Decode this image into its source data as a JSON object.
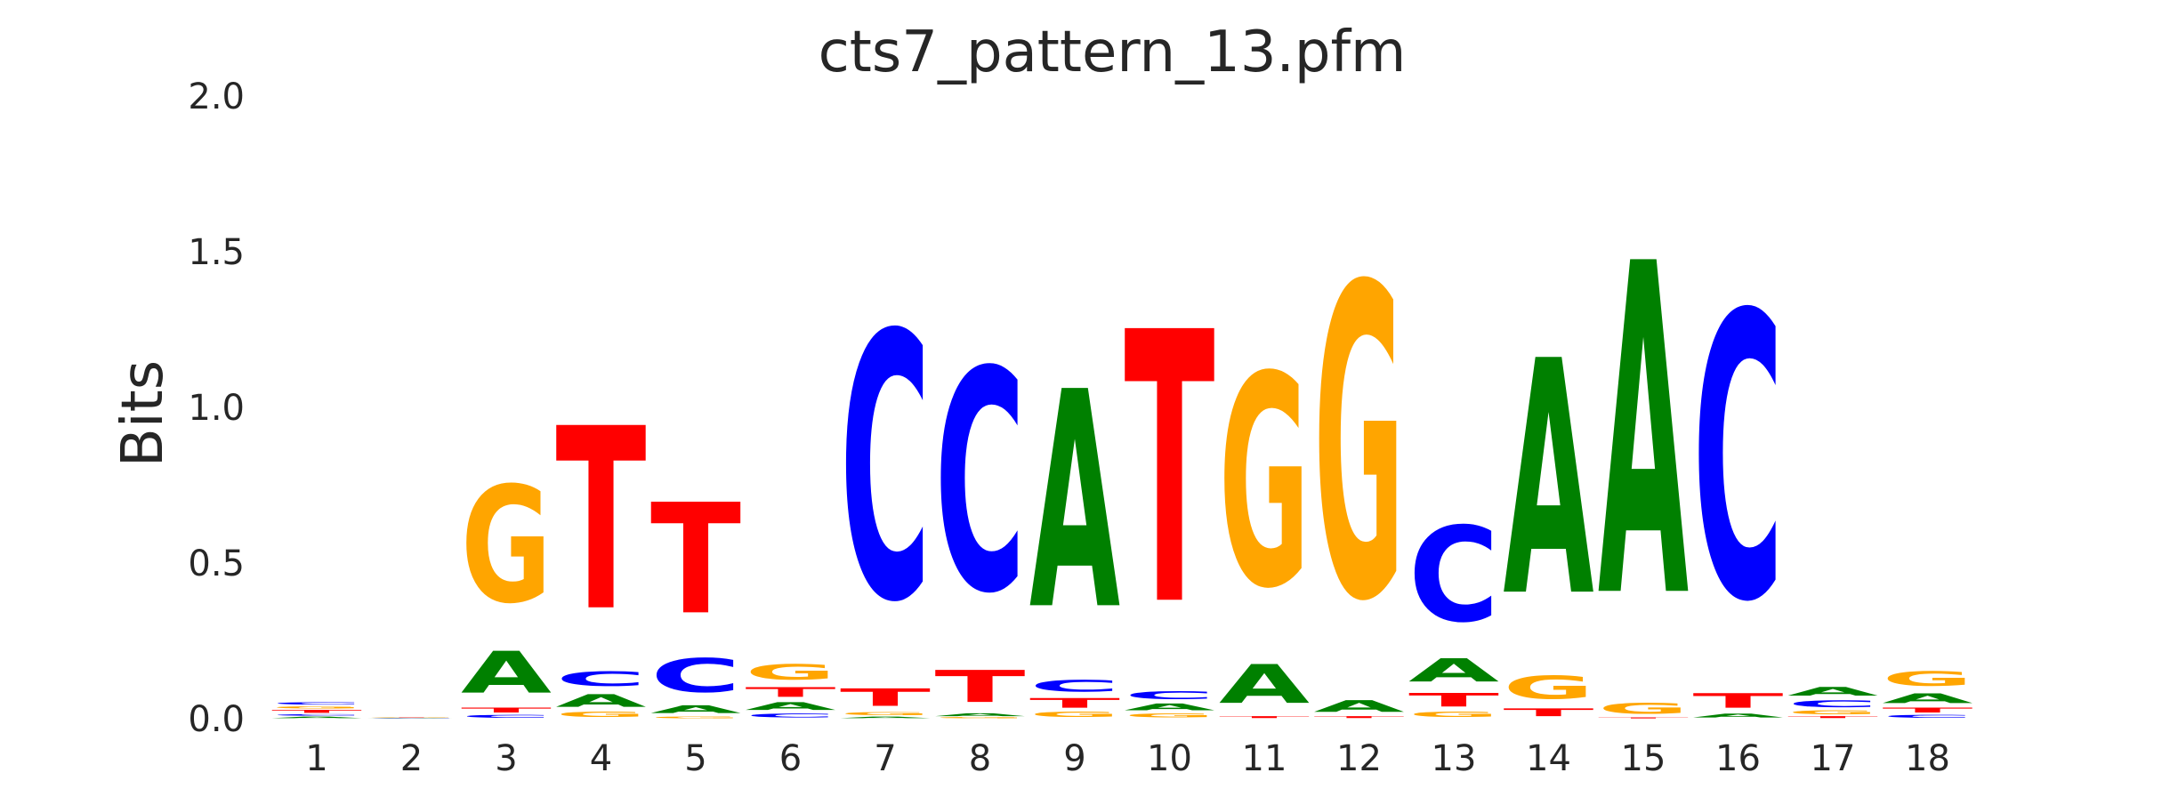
{
  "chart_data": {
    "type": "sequence-logo",
    "title": "cts7_pattern_13.pfm",
    "ylabel": "Bits",
    "ylim": [
      0,
      2.0
    ],
    "yticks": [
      "0.0",
      "0.5",
      "1.0",
      "1.5",
      "2.0"
    ],
    "ytick_values": [
      0,
      0.5,
      1.0,
      1.5,
      2.0
    ],
    "colors": {
      "A": "#008000",
      "C": "#0000ff",
      "G": "#ffa500",
      "T": "#ff0000"
    },
    "positions": [
      {
        "label": "1",
        "stack": [
          [
            "A",
            0.008
          ],
          [
            "C",
            0.008
          ],
          [
            "T",
            0.015
          ],
          [
            "G",
            0.012
          ],
          [
            "C",
            0.012
          ]
        ]
      },
      {
        "label": "2",
        "stack": [
          [
            "A",
            0.001
          ],
          [
            "C",
            0.001
          ],
          [
            "G",
            0.001
          ],
          [
            "T",
            0.001
          ]
        ]
      },
      {
        "label": "3",
        "stack": [
          [
            "C",
            0.015
          ],
          [
            "T",
            0.025
          ],
          [
            "A",
            0.215
          ],
          [
            "G",
            0.6
          ]
        ]
      },
      {
        "label": "4",
        "stack": [
          [
            "G",
            0.025
          ],
          [
            "A",
            0.065
          ],
          [
            "C",
            0.075
          ],
          [
            "T",
            0.94
          ]
        ]
      },
      {
        "label": "5",
        "stack": [
          [
            "G",
            0.01
          ],
          [
            "A",
            0.04
          ],
          [
            "C",
            0.175
          ],
          [
            "T",
            0.57
          ]
        ]
      },
      {
        "label": "6",
        "stack": [
          [
            "C",
            0.02
          ],
          [
            "A",
            0.04
          ],
          [
            "T",
            0.05
          ],
          [
            "G",
            0.08
          ]
        ]
      },
      {
        "label": "7",
        "stack": [
          [
            "A",
            0.008
          ],
          [
            "G",
            0.015
          ],
          [
            "T",
            0.09
          ],
          [
            "C",
            1.37
          ]
        ]
      },
      {
        "label": "8",
        "stack": [
          [
            "G",
            0.005
          ],
          [
            "A",
            0.015
          ],
          [
            "T",
            0.165
          ],
          [
            "C",
            1.14
          ]
        ]
      },
      {
        "label": "9",
        "stack": [
          [
            "G",
            0.025
          ],
          [
            "T",
            0.05
          ],
          [
            "C",
            0.06
          ],
          [
            "A",
            1.12
          ]
        ]
      },
      {
        "label": "10",
        "stack": [
          [
            "G",
            0.02
          ],
          [
            "A",
            0.035
          ],
          [
            "C",
            0.04
          ],
          [
            "T",
            1.4
          ]
        ]
      },
      {
        "label": "11",
        "stack": [
          [
            "T",
            0.01
          ],
          [
            "A",
            0.2
          ],
          [
            "G",
            1.09
          ]
        ]
      },
      {
        "label": "12",
        "stack": [
          [
            "T",
            0.01
          ],
          [
            "A",
            0.06
          ],
          [
            "G",
            1.61
          ]
        ]
      },
      {
        "label": "13",
        "stack": [
          [
            "G",
            0.025
          ],
          [
            "T",
            0.07
          ],
          [
            "A",
            0.12
          ],
          [
            "C",
            0.49
          ]
        ]
      },
      {
        "label": "14",
        "stack": [
          [
            "T",
            0.04
          ],
          [
            "G",
            0.12
          ],
          [
            "A",
            1.21
          ]
        ]
      },
      {
        "label": "15",
        "stack": [
          [
            "T",
            0.005
          ],
          [
            "G",
            0.055
          ],
          [
            "A",
            1.71
          ]
        ]
      },
      {
        "label": "16",
        "stack": [
          [
            "A",
            0.02
          ],
          [
            "T",
            0.075
          ],
          [
            "C",
            1.47
          ]
        ]
      },
      {
        "label": "17",
        "stack": [
          [
            "T",
            0.01
          ],
          [
            "G",
            0.02
          ],
          [
            "C",
            0.035
          ],
          [
            "A",
            0.045
          ]
        ]
      },
      {
        "label": "18",
        "stack": [
          [
            "C",
            0.015
          ],
          [
            "T",
            0.025
          ],
          [
            "A",
            0.05
          ],
          [
            "G",
            0.075
          ]
        ]
      }
    ]
  }
}
